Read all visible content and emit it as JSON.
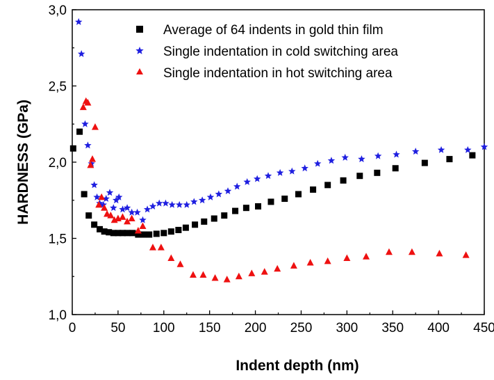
{
  "chart_data": {
    "type": "scatter",
    "xlabel": "Indent depth (nm)",
    "ylabel": "HARDNESS (GPa)",
    "xlim": [
      0,
      450
    ],
    "ylim": [
      1.0,
      3.0
    ],
    "x_ticks": [
      "0",
      "50",
      "100",
      "150",
      "200",
      "250",
      "300",
      "350",
      "400",
      "450"
    ],
    "y_ticks": [
      "1,0",
      "1,5",
      "2,0",
      "2,5",
      "3,0"
    ],
    "grid": false,
    "legend_position": "top-right",
    "series": [
      {
        "name": "Average of 64 indents in gold thin film",
        "marker": "square",
        "color": "#000000",
        "points": [
          [
            1,
            2.09
          ],
          [
            8,
            2.2
          ],
          [
            13,
            1.79
          ],
          [
            18,
            1.65
          ],
          [
            24,
            1.59
          ],
          [
            30,
            1.56
          ],
          [
            35,
            1.545
          ],
          [
            40,
            1.54
          ],
          [
            45,
            1.535
          ],
          [
            50,
            1.535
          ],
          [
            55,
            1.535
          ],
          [
            60,
            1.535
          ],
          [
            66,
            1.535
          ],
          [
            72,
            1.525
          ],
          [
            78,
            1.525
          ],
          [
            84,
            1.525
          ],
          [
            92,
            1.53
          ],
          [
            100,
            1.535
          ],
          [
            108,
            1.545
          ],
          [
            116,
            1.555
          ],
          [
            124,
            1.57
          ],
          [
            134,
            1.59
          ],
          [
            144,
            1.61
          ],
          [
            155,
            1.63
          ],
          [
            166,
            1.65
          ],
          [
            178,
            1.68
          ],
          [
            190,
            1.7
          ],
          [
            203,
            1.71
          ],
          [
            217,
            1.74
          ],
          [
            232,
            1.76
          ],
          [
            247,
            1.79
          ],
          [
            263,
            1.82
          ],
          [
            279,
            1.85
          ],
          [
            296,
            1.88
          ],
          [
            314,
            1.91
          ],
          [
            333,
            1.93
          ],
          [
            353,
            1.96
          ],
          [
            385,
            1.995
          ],
          [
            412,
            2.02
          ],
          [
            437,
            2.045
          ]
        ]
      },
      {
        "name": "Single indentation in cold switching area",
        "marker": "star",
        "color": "#1f1fe0",
        "points": [
          [
            7,
            2.92
          ],
          [
            10,
            2.71
          ],
          [
            14,
            2.25
          ],
          [
            17,
            2.11
          ],
          [
            21,
            1.99
          ],
          [
            24,
            1.85
          ],
          [
            27,
            1.77
          ],
          [
            30,
            1.73
          ],
          [
            34,
            1.72
          ],
          [
            37,
            1.76
          ],
          [
            41,
            1.8
          ],
          [
            45,
            1.7
          ],
          [
            48,
            1.75
          ],
          [
            51,
            1.77
          ],
          [
            55,
            1.69
          ],
          [
            60,
            1.7
          ],
          [
            65,
            1.67
          ],
          [
            71,
            1.67
          ],
          [
            77,
            1.62
          ],
          [
            82,
            1.69
          ],
          [
            88,
            1.71
          ],
          [
            95,
            1.73
          ],
          [
            102,
            1.73
          ],
          [
            109,
            1.72
          ],
          [
            117,
            1.72
          ],
          [
            125,
            1.72
          ],
          [
            133,
            1.74
          ],
          [
            142,
            1.75
          ],
          [
            151,
            1.77
          ],
          [
            160,
            1.79
          ],
          [
            170,
            1.81
          ],
          [
            180,
            1.84
          ],
          [
            191,
            1.87
          ],
          [
            202,
            1.89
          ],
          [
            214,
            1.91
          ],
          [
            227,
            1.93
          ],
          [
            240,
            1.94
          ],
          [
            254,
            1.96
          ],
          [
            268,
            1.99
          ],
          [
            283,
            2.01
          ],
          [
            298,
            2.03
          ],
          [
            316,
            2.02
          ],
          [
            334,
            2.04
          ],
          [
            354,
            2.05
          ],
          [
            375,
            2.07
          ],
          [
            403,
            2.08
          ],
          [
            432,
            2.08
          ],
          [
            450,
            2.1
          ]
        ]
      },
      {
        "name": "Single indentation in hot switching area",
        "marker": "triangle",
        "color": "#ee1111",
        "points": [
          [
            12,
            2.36
          ],
          [
            15,
            2.4
          ],
          [
            17,
            2.39
          ],
          [
            20,
            1.98
          ],
          [
            22,
            2.02
          ],
          [
            25,
            2.23
          ],
          [
            29,
            1.72
          ],
          [
            32,
            1.77
          ],
          [
            35,
            1.7
          ],
          [
            38,
            1.66
          ],
          [
            42,
            1.65
          ],
          [
            46,
            1.62
          ],
          [
            50,
            1.63
          ],
          [
            55,
            1.64
          ],
          [
            60,
            1.61
          ],
          [
            65,
            1.63
          ],
          [
            72,
            1.55
          ],
          [
            77,
            1.58
          ],
          [
            88,
            1.44
          ],
          [
            97,
            1.44
          ],
          [
            108,
            1.37
          ],
          [
            118,
            1.33
          ],
          [
            132,
            1.26
          ],
          [
            143,
            1.26
          ],
          [
            156,
            1.24
          ],
          [
            169,
            1.23
          ],
          [
            182,
            1.25
          ],
          [
            196,
            1.27
          ],
          [
            210,
            1.28
          ],
          [
            224,
            1.3
          ],
          [
            242,
            1.32
          ],
          [
            260,
            1.34
          ],
          [
            279,
            1.35
          ],
          [
            300,
            1.37
          ],
          [
            321,
            1.38
          ],
          [
            346,
            1.41
          ],
          [
            371,
            1.41
          ],
          [
            401,
            1.4
          ],
          [
            430,
            1.39
          ]
        ]
      }
    ]
  }
}
